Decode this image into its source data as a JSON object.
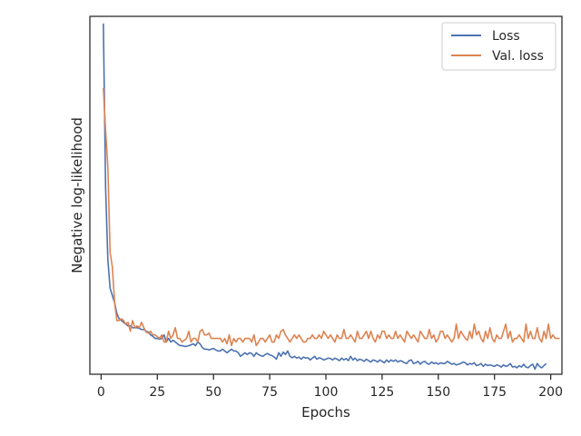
{
  "chart_data": {
    "type": "line",
    "title": "",
    "xlabel": "Epochs",
    "ylabel": "Negative log-likelihood",
    "xlim": [
      -5,
      205
    ],
    "ylim": [
      0,
      1
    ],
    "x_ticks": [
      0,
      25,
      50,
      75,
      100,
      125,
      150,
      175,
      200
    ],
    "y_ticks_visible": false,
    "grid": false,
    "legend_position": "top-right",
    "series": [
      {
        "name": "Loss",
        "color": "#4c72b0",
        "x_start": 1,
        "values": [
          0.98,
          0.52,
          0.32,
          0.24,
          0.22,
          0.2,
          0.17,
          0.155,
          0.15,
          0.145,
          0.14,
          0.135,
          0.135,
          0.13,
          0.13,
          0.13,
          0.128,
          0.125,
          0.125,
          0.12,
          0.118,
          0.11,
          0.106,
          0.1,
          0.1,
          0.098,
          0.1,
          0.11,
          0.09,
          0.1,
          0.09,
          0.095,
          0.09,
          0.085,
          0.08,
          0.08,
          0.078,
          0.078,
          0.08,
          0.082,
          0.085,
          0.08,
          0.09,
          0.085,
          0.075,
          0.07,
          0.07,
          0.068,
          0.07,
          0.072,
          0.068,
          0.065,
          0.065,
          0.07,
          0.065,
          0.06,
          0.065,
          0.07,
          0.065,
          0.065,
          0.06,
          0.05,
          0.055,
          0.06,
          0.055,
          0.06,
          0.058,
          0.05,
          0.06,
          0.055,
          0.052,
          0.05,
          0.055,
          0.058,
          0.054,
          0.052,
          0.048,
          0.042,
          0.06,
          0.05,
          0.062,
          0.055,
          0.065,
          0.05,
          0.046,
          0.05,
          0.045,
          0.048,
          0.042,
          0.048,
          0.045,
          0.046,
          0.04,
          0.045,
          0.05,
          0.042,
          0.046,
          0.044,
          0.04,
          0.042,
          0.045,
          0.044,
          0.04,
          0.045,
          0.042,
          0.038,
          0.045,
          0.04,
          0.044,
          0.038,
          0.05,
          0.04,
          0.045,
          0.038,
          0.042,
          0.04,
          0.036,
          0.042,
          0.038,
          0.034,
          0.04,
          0.038,
          0.034,
          0.04,
          0.036,
          0.032,
          0.04,
          0.034,
          0.04,
          0.036,
          0.04,
          0.034,
          0.038,
          0.036,
          0.032,
          0.03,
          0.038,
          0.04,
          0.03,
          0.032,
          0.036,
          0.028,
          0.034,
          0.036,
          0.03,
          0.028,
          0.034,
          0.03,
          0.032,
          0.028,
          0.032,
          0.03,
          0.03,
          0.036,
          0.032,
          0.028,
          0.03,
          0.026,
          0.028,
          0.03,
          0.034,
          0.032,
          0.026,
          0.03,
          0.028,
          0.032,
          0.024,
          0.026,
          0.03,
          0.022,
          0.028,
          0.024,
          0.026,
          0.024,
          0.022,
          0.026,
          0.024,
          0.02,
          0.026,
          0.022,
          0.024,
          0.03,
          0.02,
          0.022,
          0.018,
          0.024,
          0.02,
          0.028,
          0.02,
          0.018,
          0.024,
          0.028,
          0.014,
          0.03,
          0.022,
          0.018,
          0.024,
          0.03
        ]
      },
      {
        "name": "Val. loss",
        "color": "#dd8452",
        "x_start": 1,
        "values": [
          0.8,
          0.68,
          0.58,
          0.34,
          0.3,
          0.2,
          0.15,
          0.15,
          0.155,
          0.15,
          0.14,
          0.145,
          0.12,
          0.15,
          0.13,
          0.135,
          0.13,
          0.145,
          0.13,
          0.118,
          0.115,
          0.12,
          0.11,
          0.11,
          0.105,
          0.1,
          0.11,
          0.09,
          0.09,
          0.12,
          0.1,
          0.11,
          0.13,
          0.1,
          0.1,
          0.09,
          0.095,
          0.1,
          0.12,
          0.09,
          0.1,
          0.1,
          0.09,
          0.12,
          0.125,
          0.11,
          0.11,
          0.115,
          0.1,
          0.1,
          0.1,
          0.1,
          0.1,
          0.09,
          0.1,
          0.085,
          0.11,
          0.08,
          0.1,
          0.09,
          0.1,
          0.1,
          0.09,
          0.1,
          0.1,
          0.1,
          0.09,
          0.11,
          0.08,
          0.09,
          0.1,
          0.1,
          0.09,
          0.1,
          0.11,
          0.09,
          0.09,
          0.11,
          0.1,
          0.12,
          0.125,
          0.11,
          0.1,
          0.09,
          0.1,
          0.11,
          0.1,
          0.11,
          0.1,
          0.09,
          0.09,
          0.1,
          0.1,
          0.11,
          0.1,
          0.1,
          0.11,
          0.1,
          0.12,
          0.11,
          0.1,
          0.11,
          0.1,
          0.09,
          0.11,
          0.1,
          0.1,
          0.125,
          0.1,
          0.1,
          0.11,
          0.1,
          0.09,
          0.12,
          0.1,
          0.1,
          0.11,
          0.12,
          0.1,
          0.12,
          0.1,
          0.09,
          0.11,
          0.1,
          0.12,
          0.12,
          0.1,
          0.11,
          0.1,
          0.1,
          0.12,
          0.1,
          0.11,
          0.1,
          0.09,
          0.12,
          0.11,
          0.1,
          0.11,
          0.1,
          0.09,
          0.12,
          0.11,
          0.1,
          0.1,
          0.125,
          0.1,
          0.11,
          0.09,
          0.1,
          0.12,
          0.12,
          0.1,
          0.11,
          0.1,
          0.09,
          0.1,
          0.14,
          0.1,
          0.12,
          0.11,
          0.1,
          0.095,
          0.12,
          0.1,
          0.14,
          0.11,
          0.12,
          0.1,
          0.09,
          0.12,
          0.1,
          0.13,
          0.1,
          0.09,
          0.11,
          0.1,
          0.1,
          0.12,
          0.14,
          0.1,
          0.12,
          0.09,
          0.1,
          0.1,
          0.11,
          0.1,
          0.09,
          0.14,
          0.1,
          0.12,
          0.1,
          0.1,
          0.13,
          0.1,
          0.09,
          0.12,
          0.1,
          0.14,
          0.1,
          0.11,
          0.1,
          0.1,
          0.1
        ]
      }
    ]
  }
}
